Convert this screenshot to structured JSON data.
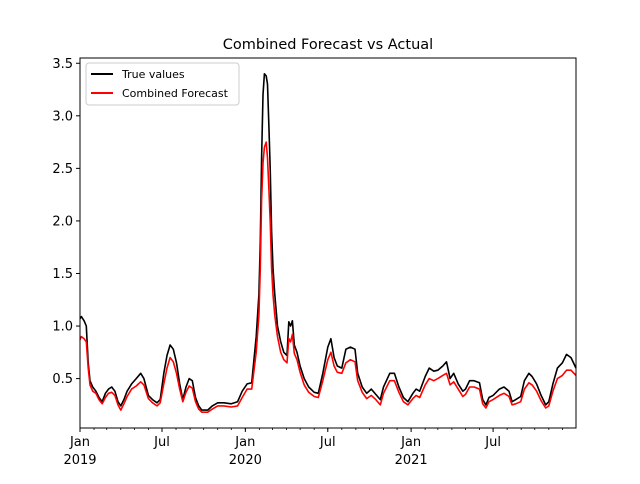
{
  "chart_data": {
    "type": "line",
    "title": "Combined Forecast vs Actual",
    "xlabel": "",
    "ylabel": "",
    "grid": false,
    "legend_placement": "top-left",
    "xlim": [
      "2019-01-01",
      "2021-12-31"
    ],
    "ylim": [
      0.03,
      3.55
    ],
    "y_ticks": [
      0.5,
      1.0,
      1.5,
      2.0,
      2.5,
      3.0,
      3.5
    ],
    "y_tick_labels": [
      "0.5",
      "1.0",
      "1.5",
      "2.0",
      "2.5",
      "3.0",
      "3.5"
    ],
    "x_ticks": [
      {
        "date": "2019-01-01",
        "label": "Jan",
        "sublabel": "2019"
      },
      {
        "date": "2019-07-01",
        "label": "Jul",
        "sublabel": ""
      },
      {
        "date": "2020-01-01",
        "label": "Jan",
        "sublabel": "2020"
      },
      {
        "date": "2020-07-01",
        "label": "Jul",
        "sublabel": ""
      },
      {
        "date": "2021-01-01",
        "label": "Jan",
        "sublabel": "2021"
      },
      {
        "date": "2021-07-01",
        "label": "Jul",
        "sublabel": ""
      }
    ],
    "series": [
      {
        "name": "True values",
        "color": "#000000",
        "points": [
          [
            "2019-01-01",
            1.07
          ],
          [
            "2019-01-04",
            1.09
          ],
          [
            "2019-01-10",
            1.05
          ],
          [
            "2019-01-15",
            1.0
          ],
          [
            "2019-01-19",
            0.65
          ],
          [
            "2019-01-23",
            0.48
          ],
          [
            "2019-01-29",
            0.42
          ],
          [
            "2019-02-05",
            0.38
          ],
          [
            "2019-02-12",
            0.32
          ],
          [
            "2019-02-19",
            0.28
          ],
          [
            "2019-02-26",
            0.36
          ],
          [
            "2019-03-05",
            0.4
          ],
          [
            "2019-03-12",
            0.42
          ],
          [
            "2019-03-19",
            0.38
          ],
          [
            "2019-03-26",
            0.28
          ],
          [
            "2019-04-01",
            0.24
          ],
          [
            "2019-04-08",
            0.3
          ],
          [
            "2019-04-15",
            0.38
          ],
          [
            "2019-04-25",
            0.45
          ],
          [
            "2019-05-05",
            0.5
          ],
          [
            "2019-05-15",
            0.55
          ],
          [
            "2019-05-22",
            0.5
          ],
          [
            "2019-06-01",
            0.34
          ],
          [
            "2019-06-10",
            0.3
          ],
          [
            "2019-06-20",
            0.27
          ],
          [
            "2019-06-27",
            0.3
          ],
          [
            "2019-07-05",
            0.55
          ],
          [
            "2019-07-12",
            0.72
          ],
          [
            "2019-07-19",
            0.82
          ],
          [
            "2019-07-26",
            0.78
          ],
          [
            "2019-08-02",
            0.65
          ],
          [
            "2019-08-09",
            0.45
          ],
          [
            "2019-08-16",
            0.3
          ],
          [
            "2019-08-23",
            0.42
          ],
          [
            "2019-08-30",
            0.5
          ],
          [
            "2019-09-06",
            0.48
          ],
          [
            "2019-09-13",
            0.32
          ],
          [
            "2019-09-20",
            0.24
          ],
          [
            "2019-09-27",
            0.2
          ],
          [
            "2019-10-10",
            0.2
          ],
          [
            "2019-10-20",
            0.24
          ],
          [
            "2019-11-01",
            0.27
          ],
          [
            "2019-11-15",
            0.27
          ],
          [
            "2019-12-01",
            0.26
          ],
          [
            "2019-12-15",
            0.28
          ],
          [
            "2019-12-25",
            0.38
          ],
          [
            "2020-01-05",
            0.45
          ],
          [
            "2020-01-15",
            0.46
          ],
          [
            "2020-01-25",
            0.9
          ],
          [
            "2020-01-31",
            1.3
          ],
          [
            "2020-02-03",
            1.8
          ],
          [
            "2020-02-06",
            2.6
          ],
          [
            "2020-02-09",
            3.2
          ],
          [
            "2020-02-12",
            3.4
          ],
          [
            "2020-02-16",
            3.38
          ],
          [
            "2020-02-19",
            3.3
          ],
          [
            "2020-02-22",
            2.9
          ],
          [
            "2020-02-25",
            2.5
          ],
          [
            "2020-02-28",
            1.9
          ],
          [
            "2020-03-02",
            1.55
          ],
          [
            "2020-03-06",
            1.3
          ],
          [
            "2020-03-12",
            1.0
          ],
          [
            "2020-03-19",
            0.85
          ],
          [
            "2020-03-26",
            0.75
          ],
          [
            "2020-04-02",
            0.72
          ],
          [
            "2020-04-06",
            1.04
          ],
          [
            "2020-04-10",
            1.0
          ],
          [
            "2020-04-14",
            1.05
          ],
          [
            "2020-04-18",
            0.82
          ],
          [
            "2020-04-24",
            0.75
          ],
          [
            "2020-05-01",
            0.62
          ],
          [
            "2020-05-10",
            0.5
          ],
          [
            "2020-05-20",
            0.42
          ],
          [
            "2020-06-01",
            0.37
          ],
          [
            "2020-06-10",
            0.36
          ],
          [
            "2020-06-20",
            0.55
          ],
          [
            "2020-07-01",
            0.8
          ],
          [
            "2020-07-08",
            0.88
          ],
          [
            "2020-07-15",
            0.7
          ],
          [
            "2020-07-22",
            0.62
          ],
          [
            "2020-08-01",
            0.6
          ],
          [
            "2020-08-10",
            0.78
          ],
          [
            "2020-08-20",
            0.8
          ],
          [
            "2020-08-30",
            0.78
          ],
          [
            "2020-09-05",
            0.55
          ],
          [
            "2020-09-15",
            0.42
          ],
          [
            "2020-09-25",
            0.36
          ],
          [
            "2020-10-05",
            0.4
          ],
          [
            "2020-10-15",
            0.35
          ],
          [
            "2020-10-25",
            0.3
          ],
          [
            "2020-11-01",
            0.42
          ],
          [
            "2020-11-15",
            0.55
          ],
          [
            "2020-11-25",
            0.55
          ],
          [
            "2020-12-05",
            0.42
          ],
          [
            "2020-12-15",
            0.32
          ],
          [
            "2020-12-25",
            0.28
          ],
          [
            "2021-01-05",
            0.36
          ],
          [
            "2021-01-12",
            0.4
          ],
          [
            "2021-01-20",
            0.38
          ],
          [
            "2021-02-01",
            0.52
          ],
          [
            "2021-02-10",
            0.6
          ],
          [
            "2021-02-20",
            0.57
          ],
          [
            "2021-03-01",
            0.58
          ],
          [
            "2021-03-12",
            0.62
          ],
          [
            "2021-03-20",
            0.66
          ],
          [
            "2021-03-28",
            0.5
          ],
          [
            "2021-04-05",
            0.55
          ],
          [
            "2021-04-15",
            0.45
          ],
          [
            "2021-04-25",
            0.38
          ],
          [
            "2021-05-01",
            0.4
          ],
          [
            "2021-05-10",
            0.48
          ],
          [
            "2021-05-20",
            0.48
          ],
          [
            "2021-06-01",
            0.46
          ],
          [
            "2021-06-08",
            0.3
          ],
          [
            "2021-06-15",
            0.25
          ],
          [
            "2021-06-22",
            0.32
          ],
          [
            "2021-07-01",
            0.34
          ],
          [
            "2021-07-15",
            0.4
          ],
          [
            "2021-07-25",
            0.42
          ],
          [
            "2021-08-05",
            0.38
          ],
          [
            "2021-08-12",
            0.28
          ],
          [
            "2021-08-20",
            0.3
          ],
          [
            "2021-08-31",
            0.33
          ],
          [
            "2021-09-08",
            0.48
          ],
          [
            "2021-09-18",
            0.55
          ],
          [
            "2021-09-25",
            0.52
          ],
          [
            "2021-10-05",
            0.45
          ],
          [
            "2021-10-15",
            0.34
          ],
          [
            "2021-10-25",
            0.25
          ],
          [
            "2021-11-01",
            0.28
          ],
          [
            "2021-11-10",
            0.45
          ],
          [
            "2021-11-20",
            0.6
          ],
          [
            "2021-12-01",
            0.65
          ],
          [
            "2021-12-10",
            0.73
          ],
          [
            "2021-12-20",
            0.7
          ],
          [
            "2021-12-31",
            0.6
          ]
        ]
      },
      {
        "name": "Combined Forecast",
        "color": "#ff0000",
        "points": [
          [
            "2019-01-01",
            0.87
          ],
          [
            "2019-01-04",
            0.9
          ],
          [
            "2019-01-10",
            0.88
          ],
          [
            "2019-01-15",
            0.85
          ],
          [
            "2019-01-19",
            0.6
          ],
          [
            "2019-01-23",
            0.44
          ],
          [
            "2019-01-29",
            0.38
          ],
          [
            "2019-02-05",
            0.36
          ],
          [
            "2019-02-12",
            0.3
          ],
          [
            "2019-02-19",
            0.26
          ],
          [
            "2019-02-26",
            0.32
          ],
          [
            "2019-03-05",
            0.36
          ],
          [
            "2019-03-12",
            0.37
          ],
          [
            "2019-03-19",
            0.34
          ],
          [
            "2019-03-26",
            0.25
          ],
          [
            "2019-04-01",
            0.2
          ],
          [
            "2019-04-08",
            0.26
          ],
          [
            "2019-04-15",
            0.33
          ],
          [
            "2019-04-25",
            0.4
          ],
          [
            "2019-05-05",
            0.43
          ],
          [
            "2019-05-15",
            0.47
          ],
          [
            "2019-05-22",
            0.44
          ],
          [
            "2019-06-01",
            0.31
          ],
          [
            "2019-06-10",
            0.27
          ],
          [
            "2019-06-20",
            0.24
          ],
          [
            "2019-06-27",
            0.27
          ],
          [
            "2019-07-05",
            0.45
          ],
          [
            "2019-07-12",
            0.6
          ],
          [
            "2019-07-19",
            0.7
          ],
          [
            "2019-07-26",
            0.66
          ],
          [
            "2019-08-02",
            0.55
          ],
          [
            "2019-08-09",
            0.4
          ],
          [
            "2019-08-16",
            0.28
          ],
          [
            "2019-08-23",
            0.37
          ],
          [
            "2019-08-30",
            0.43
          ],
          [
            "2019-09-06",
            0.41
          ],
          [
            "2019-09-13",
            0.28
          ],
          [
            "2019-09-20",
            0.21
          ],
          [
            "2019-09-27",
            0.18
          ],
          [
            "2019-10-10",
            0.18
          ],
          [
            "2019-10-20",
            0.21
          ],
          [
            "2019-11-01",
            0.24
          ],
          [
            "2019-11-15",
            0.24
          ],
          [
            "2019-12-01",
            0.23
          ],
          [
            "2019-12-15",
            0.24
          ],
          [
            "2019-12-25",
            0.32
          ],
          [
            "2020-01-05",
            0.4
          ],
          [
            "2020-01-15",
            0.4
          ],
          [
            "2020-01-25",
            0.75
          ],
          [
            "2020-01-31",
            1.1
          ],
          [
            "2020-02-03",
            1.55
          ],
          [
            "2020-02-06",
            2.2
          ],
          [
            "2020-02-09",
            2.55
          ],
          [
            "2020-02-12",
            2.7
          ],
          [
            "2020-02-16",
            2.75
          ],
          [
            "2020-02-19",
            2.6
          ],
          [
            "2020-02-22",
            2.3
          ],
          [
            "2020-02-25",
            2.0
          ],
          [
            "2020-02-28",
            1.55
          ],
          [
            "2020-03-02",
            1.3
          ],
          [
            "2020-03-06",
            1.1
          ],
          [
            "2020-03-12",
            0.9
          ],
          [
            "2020-03-19",
            0.75
          ],
          [
            "2020-03-26",
            0.68
          ],
          [
            "2020-04-02",
            0.65
          ],
          [
            "2020-04-06",
            0.88
          ],
          [
            "2020-04-10",
            0.85
          ],
          [
            "2020-04-14",
            0.92
          ],
          [
            "2020-04-18",
            0.74
          ],
          [
            "2020-04-24",
            0.68
          ],
          [
            "2020-05-01",
            0.56
          ],
          [
            "2020-05-10",
            0.44
          ],
          [
            "2020-05-20",
            0.37
          ],
          [
            "2020-06-01",
            0.33
          ],
          [
            "2020-06-10",
            0.32
          ],
          [
            "2020-06-20",
            0.48
          ],
          [
            "2020-07-01",
            0.68
          ],
          [
            "2020-07-08",
            0.75
          ],
          [
            "2020-07-15",
            0.62
          ],
          [
            "2020-07-22",
            0.56
          ],
          [
            "2020-08-01",
            0.55
          ],
          [
            "2020-08-10",
            0.65
          ],
          [
            "2020-08-20",
            0.68
          ],
          [
            "2020-08-30",
            0.66
          ],
          [
            "2020-09-05",
            0.48
          ],
          [
            "2020-09-15",
            0.37
          ],
          [
            "2020-09-25",
            0.31
          ],
          [
            "2020-10-05",
            0.34
          ],
          [
            "2020-10-15",
            0.3
          ],
          [
            "2020-10-25",
            0.25
          ],
          [
            "2020-11-01",
            0.36
          ],
          [
            "2020-11-15",
            0.48
          ],
          [
            "2020-11-25",
            0.48
          ],
          [
            "2020-12-05",
            0.37
          ],
          [
            "2020-12-15",
            0.28
          ],
          [
            "2020-12-25",
            0.25
          ],
          [
            "2021-01-05",
            0.31
          ],
          [
            "2021-01-12",
            0.34
          ],
          [
            "2021-01-20",
            0.32
          ],
          [
            "2021-02-01",
            0.44
          ],
          [
            "2021-02-10",
            0.5
          ],
          [
            "2021-02-20",
            0.48
          ],
          [
            "2021-03-01",
            0.5
          ],
          [
            "2021-03-12",
            0.53
          ],
          [
            "2021-03-20",
            0.55
          ],
          [
            "2021-03-28",
            0.44
          ],
          [
            "2021-04-05",
            0.47
          ],
          [
            "2021-04-15",
            0.4
          ],
          [
            "2021-04-25",
            0.33
          ],
          [
            "2021-05-01",
            0.35
          ],
          [
            "2021-05-10",
            0.42
          ],
          [
            "2021-05-20",
            0.42
          ],
          [
            "2021-06-01",
            0.4
          ],
          [
            "2021-06-08",
            0.26
          ],
          [
            "2021-06-15",
            0.22
          ],
          [
            "2021-06-22",
            0.28
          ],
          [
            "2021-07-01",
            0.3
          ],
          [
            "2021-07-15",
            0.34
          ],
          [
            "2021-07-25",
            0.36
          ],
          [
            "2021-08-05",
            0.33
          ],
          [
            "2021-08-12",
            0.25
          ],
          [
            "2021-08-20",
            0.26
          ],
          [
            "2021-08-31",
            0.28
          ],
          [
            "2021-09-08",
            0.4
          ],
          [
            "2021-09-18",
            0.46
          ],
          [
            "2021-09-25",
            0.44
          ],
          [
            "2021-10-05",
            0.38
          ],
          [
            "2021-10-15",
            0.29
          ],
          [
            "2021-10-25",
            0.22
          ],
          [
            "2021-11-01",
            0.24
          ],
          [
            "2021-11-10",
            0.38
          ],
          [
            "2021-11-20",
            0.5
          ],
          [
            "2021-12-01",
            0.53
          ],
          [
            "2021-12-10",
            0.58
          ],
          [
            "2021-12-20",
            0.58
          ],
          [
            "2021-12-31",
            0.53
          ]
        ]
      }
    ]
  }
}
